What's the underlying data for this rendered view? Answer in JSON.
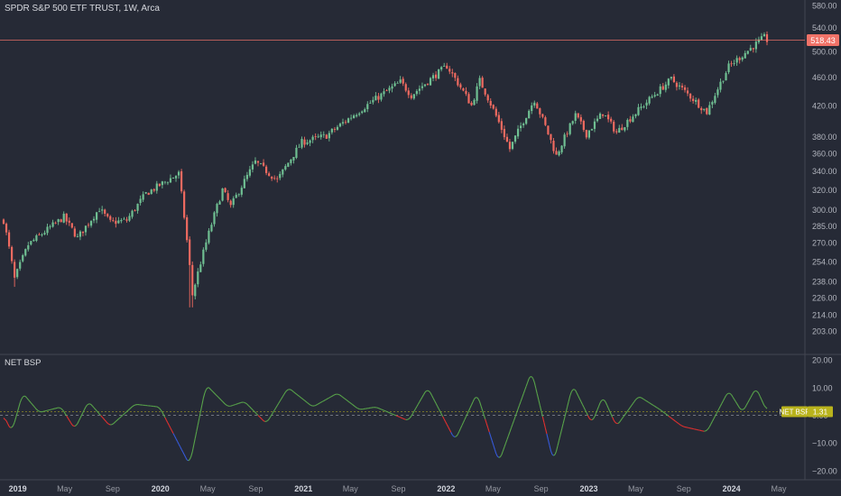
{
  "header": {
    "title": "SPDR S&P 500 ETF TRUST, 1W, Arca"
  },
  "indicator": {
    "name": "NET BSP",
    "tag_label": "NET BSP",
    "tag_value": "1.31"
  },
  "price_tag": "518.43",
  "colors": {
    "background": "#262a36",
    "up": "#6fbf92",
    "down": "#ef6a60",
    "osc_green": "#58a34a",
    "osc_red": "#e0302f",
    "osc_blue": "#3659d9",
    "price_tag": "#f07268",
    "indicator_tag": "#b9b31c"
  },
  "chart_data": [
    {
      "type": "candlestick",
      "title": "SPDR S&P 500 ETF TRUST, 1W, Arca",
      "scale": "log",
      "ylim": [
        196,
        585
      ],
      "y_ticks": [
        580,
        540,
        500,
        460,
        420,
        380,
        360,
        340,
        320,
        300,
        285,
        270,
        254,
        238,
        226,
        214,
        203
      ],
      "x_ticks": [
        "2019",
        "May",
        "Sep",
        "2020",
        "May",
        "Sep",
        "2021",
        "May",
        "Sep",
        "2022",
        "May",
        "Sep",
        "2023",
        "May",
        "Sep",
        "2024",
        "May"
      ],
      "last_price": 518.43,
      "x_anchors": [
        [
          "2018-11-26",
          290
        ],
        [
          "2018-12-24",
          240
        ],
        [
          "2019-01-28",
          268
        ],
        [
          "2019-04-29",
          293
        ],
        [
          "2019-06-03",
          274
        ],
        [
          "2019-07-29",
          301
        ],
        [
          "2019-08-26",
          288
        ],
        [
          "2019-10-07",
          290
        ],
        [
          "2019-11-25",
          316
        ],
        [
          "2020-02-17",
          337
        ],
        [
          "2020-03-23",
          228
        ],
        [
          "2020-06-08",
          320
        ],
        [
          "2020-06-29",
          303
        ],
        [
          "2020-08-31",
          350
        ],
        [
          "2020-10-26",
          330
        ],
        [
          "2020-12-28",
          373
        ],
        [
          "2021-03-01",
          381
        ],
        [
          "2021-09-06",
          453
        ],
        [
          "2021-10-04",
          434
        ],
        [
          "2022-01-03",
          477
        ],
        [
          "2022-03-07",
          420
        ],
        [
          "2022-03-28",
          455
        ],
        [
          "2022-06-13",
          365
        ],
        [
          "2022-08-15",
          428
        ],
        [
          "2022-10-10",
          357
        ],
        [
          "2022-11-28",
          407
        ],
        [
          "2022-12-26",
          383
        ],
        [
          "2023-02-06",
          410
        ],
        [
          "2023-03-13",
          385
        ],
        [
          "2023-07-31",
          457
        ],
        [
          "2023-10-30",
          411
        ],
        [
          "2023-12-25",
          476
        ],
        [
          "2024-03-25",
          523
        ],
        [
          "2024-04-01",
          518.43
        ]
      ]
    },
    {
      "type": "line",
      "name": "NET BSP",
      "ylim": [
        -21,
        21
      ],
      "y_ticks": [
        20,
        10,
        0,
        -10,
        -20
      ],
      "last_value": 1.31,
      "x_anchors": [
        [
          "2018-11-26",
          0
        ],
        [
          "2018-12-17",
          -6
        ],
        [
          "2019-01-14",
          8
        ],
        [
          "2019-02-25",
          1
        ],
        [
          "2019-04-22",
          3
        ],
        [
          "2019-05-27",
          -5
        ],
        [
          "2019-07-01",
          5
        ],
        [
          "2019-08-26",
          -4
        ],
        [
          "2019-10-28",
          4
        ],
        [
          "2019-12-30",
          3
        ],
        [
          "2020-03-16",
          -18
        ],
        [
          "2020-04-27",
          11
        ],
        [
          "2020-06-22",
          3
        ],
        [
          "2020-08-03",
          5
        ],
        [
          "2020-09-28",
          -3
        ],
        [
          "2020-11-23",
          10
        ],
        [
          "2021-01-25",
          3
        ],
        [
          "2021-03-29",
          8
        ],
        [
          "2021-05-24",
          2
        ],
        [
          "2021-07-05",
          3
        ],
        [
          "2021-09-27",
          -2
        ],
        [
          "2021-11-15",
          10
        ],
        [
          "2022-01-24",
          -9
        ],
        [
          "2022-03-21",
          8
        ],
        [
          "2022-05-16",
          -17
        ],
        [
          "2022-08-08",
          16
        ],
        [
          "2022-10-03",
          -17
        ],
        [
          "2022-11-21",
          11
        ],
        [
          "2023-01-09",
          -3
        ],
        [
          "2023-02-06",
          7
        ],
        [
          "2023-03-13",
          -4
        ],
        [
          "2023-05-08",
          7
        ],
        [
          "2023-07-03",
          2
        ],
        [
          "2023-08-28",
          -4
        ],
        [
          "2023-10-30",
          -6
        ],
        [
          "2023-12-25",
          9
        ],
        [
          "2024-01-29",
          1
        ],
        [
          "2024-03-04",
          10
        ],
        [
          "2024-04-01",
          1.31
        ]
      ]
    }
  ]
}
